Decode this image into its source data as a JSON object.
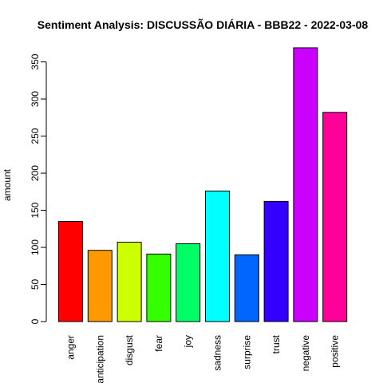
{
  "chart_data": {
    "type": "bar",
    "title": "Sentiment Analysis: DISCUSSÃO DIÁRIA - BBB22 - 2022-03-08",
    "xlabel": "",
    "ylabel": "amount",
    "ylim": [
      0,
      370
    ],
    "yticks": [
      0,
      50,
      100,
      150,
      200,
      250,
      300,
      350
    ],
    "grid": false,
    "legend": "none",
    "categories": [
      "anger",
      "anticipation",
      "disgust",
      "fear",
      "joy",
      "sadness",
      "surprise",
      "trust",
      "negative",
      "positive"
    ],
    "values": [
      135,
      96,
      107,
      91,
      105,
      176,
      90,
      162,
      369,
      282
    ],
    "colors": [
      "#FF0000",
      "#FF9900",
      "#CCFF00",
      "#33FF00",
      "#00FF66",
      "#00FFFF",
      "#0066FF",
      "#3300FF",
      "#CC00FF",
      "#FF0099"
    ]
  }
}
